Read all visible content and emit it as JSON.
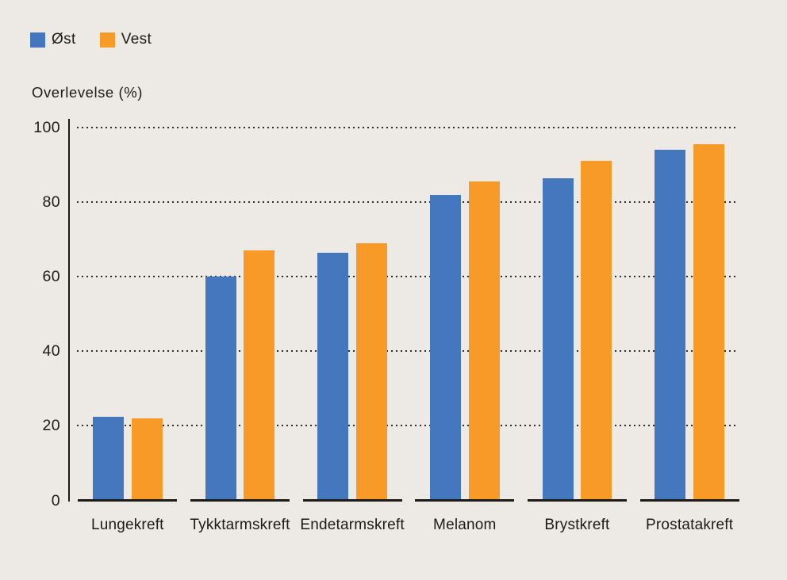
{
  "chart_data": {
    "type": "bar",
    "title": "",
    "ylabel": "Overlevelse (%)",
    "xlabel": "",
    "categories": [
      "Lungekreft",
      "Tykktarmskreft",
      "Endetarmskreft",
      "Melanom",
      "Brystkreft",
      "Prostatakreft"
    ],
    "series": [
      {
        "name": "Øst",
        "color": "#4477BE",
        "values": [
          22.5,
          60,
          66.5,
          82,
          86.5,
          94
        ]
      },
      {
        "name": "Vest",
        "color": "#F79A28",
        "values": [
          22,
          67,
          69,
          85.5,
          91,
          95.5
        ]
      }
    ],
    "ylim": [
      0,
      100
    ],
    "yticks": [
      0,
      20,
      40,
      60,
      80,
      100
    ],
    "grid": "horizontal-dotted",
    "legend_position": "top-left",
    "colors": {
      "background": "#EDE9E4",
      "text": "#1B1B19",
      "axis": "#1B1B19",
      "gridline": "#2A2A27"
    }
  }
}
